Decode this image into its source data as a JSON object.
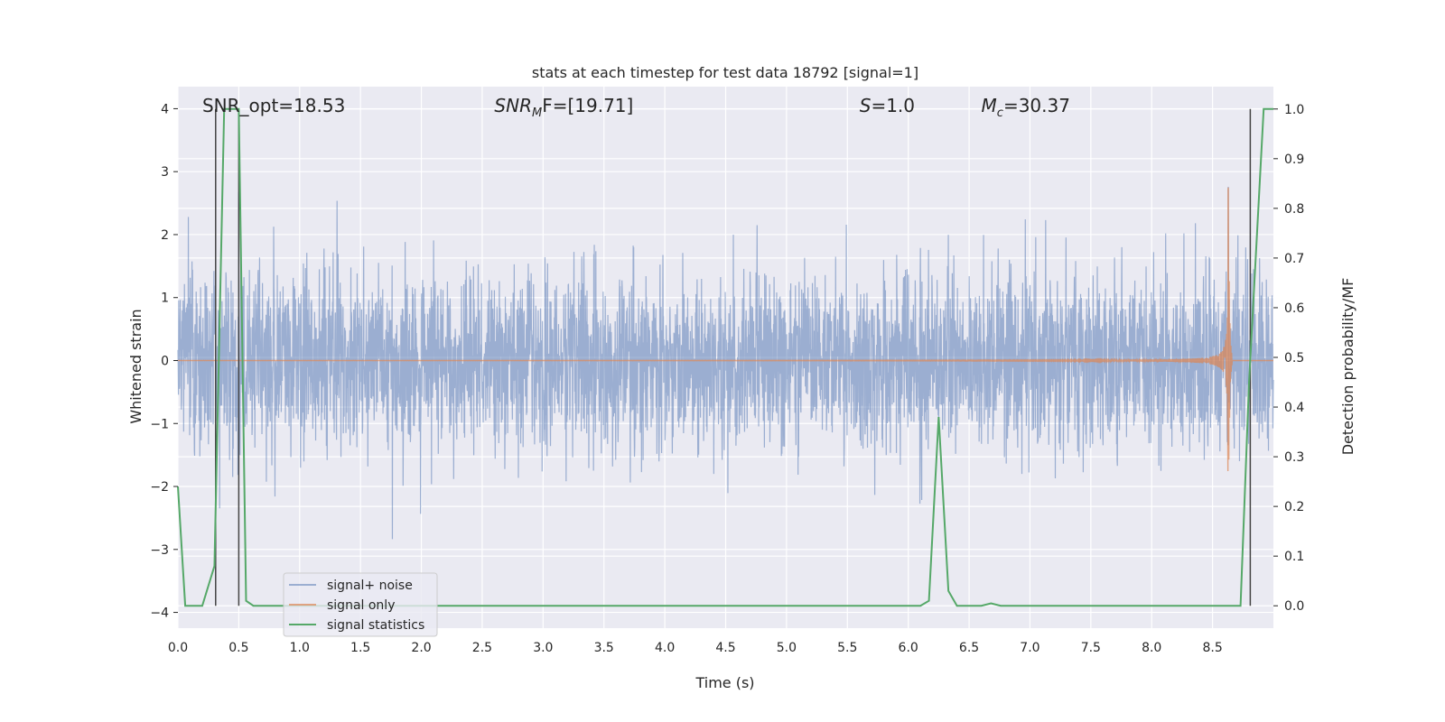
{
  "chart_data": {
    "type": "line",
    "title": "stats at each timestep for test data 18792 [signal=1]",
    "xlabel": "Time (s)",
    "ylabel_left": "Whitened strain",
    "ylabel_right": "Detection probability/MF",
    "xlim": [
      0.0,
      9.0
    ],
    "ylim_left": [
      -4.25,
      4.35
    ],
    "ylim_right": [
      -0.045,
      1.045
    ],
    "x_ticks": [
      "0.0",
      "0.5",
      "1.0",
      "1.5",
      "2.0",
      "2.5",
      "3.0",
      "3.5",
      "4.0",
      "4.5",
      "5.0",
      "5.5",
      "6.0",
      "6.5",
      "7.0",
      "7.5",
      "8.0",
      "8.5"
    ],
    "y_left_ticks": [
      "4",
      "3",
      "2",
      "1",
      "0",
      "−1",
      "−2",
      "−3",
      "−4"
    ],
    "y_right_ticks": [
      "1.0",
      "0.9",
      "0.8",
      "0.7",
      "0.6",
      "0.5",
      "0.4",
      "0.3",
      "0.2",
      "0.1",
      "0.0"
    ],
    "grid": true,
    "legend_position": "lower-left",
    "annotations": [
      {
        "label": "SNR_opt=18.53",
        "x": 0.2
      },
      {
        "label": "SNR",
        "sub": "M",
        "suffix": "F=[19.71]",
        "x": 2.6
      },
      {
        "label": "S",
        "suffix": "=1.0",
        "x": 5.6
      },
      {
        "label": "M",
        "sub": "c",
        "suffix": "=30.37",
        "x": 6.6
      }
    ],
    "series": [
      {
        "name": "signal+ noise",
        "color": "#4c72b0",
        "opacity": 0.5,
        "axis": "left",
        "kind": "noise",
        "noise_sigma": 0.7,
        "noise_seed": 18792
      },
      {
        "name": "signal only",
        "color": "#dd8452",
        "opacity": 0.7,
        "axis": "left",
        "kind": "chirp",
        "merger_time": 8.63,
        "peak_amplitude": 3.0
      },
      {
        "name": "signal statistics",
        "color": "#55a868",
        "axis": "right",
        "kind": "line",
        "x": [
          0.0,
          0.06,
          0.2,
          0.3,
          0.38,
          0.5,
          0.56,
          0.62,
          1.0,
          6.1,
          6.17,
          6.25,
          6.33,
          6.4,
          6.6,
          6.68,
          6.76,
          8.73,
          8.8,
          8.92,
          9.0
        ],
        "y": [
          0.24,
          0.0,
          0.0,
          0.08,
          1.0,
          1.0,
          0.01,
          0.0,
          0.0,
          0.0,
          0.01,
          0.38,
          0.03,
          0.0,
          0.0,
          0.005,
          0.0,
          0.0,
          0.45,
          1.0,
          1.0
        ]
      }
    ],
    "vertical_markers": [
      {
        "x": 0.31,
        "y_range_right": [
          0.0,
          1.0
        ],
        "color": "#444444"
      },
      {
        "x": 0.5,
        "y_range_right": [
          0.0,
          1.0
        ],
        "color": "#444444"
      },
      {
        "x": 8.81,
        "y_range_right": [
          0.0,
          1.0
        ],
        "color": "#444444"
      }
    ]
  },
  "colors": {
    "plot_background": "#eaeaf2",
    "grid": "#ffffff",
    "text": "#262626",
    "legend_background": "#eaeaf2",
    "legend_border": "#cccccc"
  }
}
